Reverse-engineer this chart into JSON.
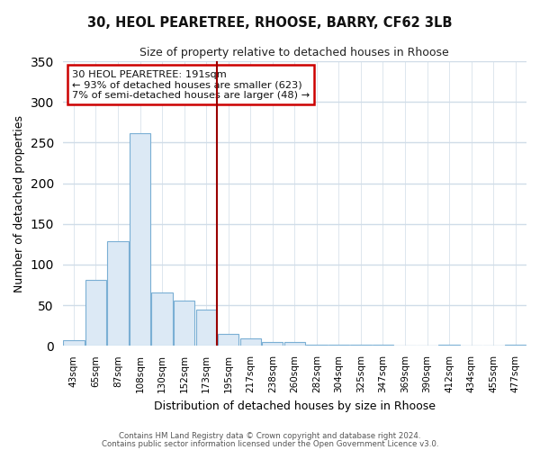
{
  "title": "30, HEOL PEARETREE, RHOOSE, BARRY, CF62 3LB",
  "subtitle": "Size of property relative to detached houses in Rhoose",
  "xlabel": "Distribution of detached houses by size in Rhoose",
  "ylabel": "Number of detached properties",
  "bin_labels": [
    "43sqm",
    "65sqm",
    "87sqm",
    "108sqm",
    "130sqm",
    "152sqm",
    "173sqm",
    "195sqm",
    "217sqm",
    "238sqm",
    "260sqm",
    "282sqm",
    "304sqm",
    "325sqm",
    "347sqm",
    "369sqm",
    "390sqm",
    "412sqm",
    "434sqm",
    "455sqm",
    "477sqm"
  ],
  "bar_values": [
    7,
    81,
    129,
    262,
    66,
    56,
    45,
    15,
    9,
    5,
    5,
    2,
    1,
    1,
    1,
    0,
    0,
    1,
    0,
    0,
    2
  ],
  "bar_color": "#dce9f5",
  "bar_edge_color": "#7aafd4",
  "vline_x_idx": 7,
  "vline_color": "#990000",
  "ylim": [
    0,
    350
  ],
  "yticks": [
    0,
    50,
    100,
    150,
    200,
    250,
    300,
    350
  ],
  "annotation_title": "30 HEOL PEARETREE: 191sqm",
  "annotation_line1": "← 93% of detached houses are smaller (623)",
  "annotation_line2": "7% of semi-detached houses are larger (48) →",
  "annotation_box_color": "#ffffff",
  "annotation_border_color": "#cc0000",
  "footer1": "Contains HM Land Registry data © Crown copyright and database right 2024.",
  "footer2": "Contains public sector information licensed under the Open Government Licence v3.0.",
  "bg_color": "#ffffff",
  "plot_bg_color": "#ffffff",
  "grid_color": "#d0dce8"
}
